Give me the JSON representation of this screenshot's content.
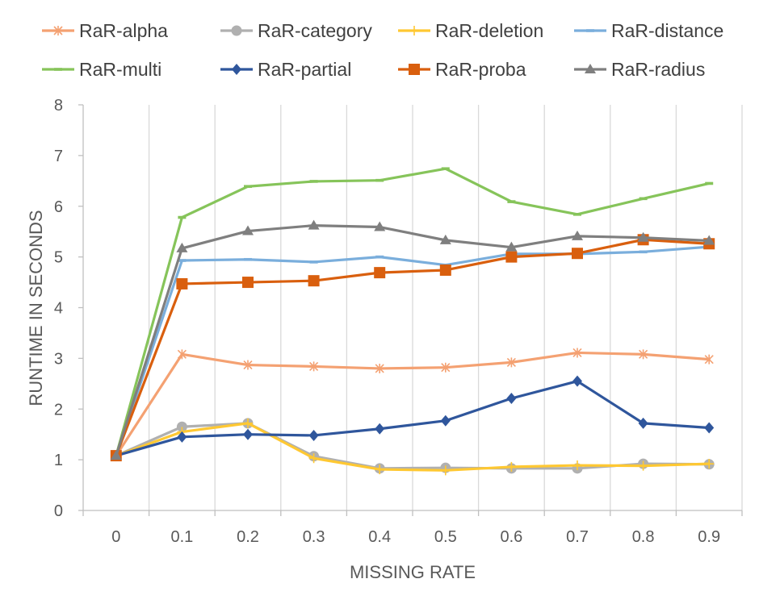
{
  "chart_data": {
    "type": "line",
    "title": "",
    "xlabel": "MISSING RATE",
    "ylabel": "RUNTIME IN SECONDS",
    "categories": [
      "0",
      "0.1",
      "0.2",
      "0.3",
      "0.4",
      "0.5",
      "0.6",
      "0.7",
      "0.8",
      "0.9"
    ],
    "yticks": [
      "0",
      "1",
      "2",
      "3",
      "4",
      "5",
      "6",
      "7",
      "8"
    ],
    "ylim": [
      0,
      8
    ],
    "grid": "vertical",
    "legend_position": "top",
    "series": [
      {
        "name": "RaR-alpha",
        "color": "#f4a172",
        "marker": "star",
        "values": [
          1.08,
          3.08,
          2.87,
          2.84,
          2.8,
          2.82,
          2.92,
          3.11,
          3.08,
          2.98
        ]
      },
      {
        "name": "RaR-category",
        "color": "#b0b0b0",
        "marker": "circle",
        "values": [
          1.08,
          1.65,
          1.72,
          1.07,
          0.83,
          0.84,
          0.83,
          0.83,
          0.92,
          0.91
        ]
      },
      {
        "name": "RaR-deletion",
        "color": "#ffc832",
        "marker": "plus",
        "values": [
          1.08,
          1.55,
          1.72,
          1.03,
          0.81,
          0.79,
          0.86,
          0.89,
          0.88,
          0.92
        ]
      },
      {
        "name": "RaR-distance",
        "color": "#7aaedc",
        "marker": "dash",
        "values": [
          1.08,
          4.93,
          4.95,
          4.9,
          5.0,
          4.84,
          5.06,
          5.06,
          5.1,
          5.2
        ]
      },
      {
        "name": "RaR-multi",
        "color": "#86c45a",
        "marker": "dash",
        "values": [
          1.08,
          5.78,
          6.39,
          6.49,
          6.51,
          6.74,
          6.09,
          5.84,
          6.15,
          6.45
        ]
      },
      {
        "name": "RaR-partial",
        "color": "#2f569c",
        "marker": "diamond",
        "values": [
          1.08,
          1.45,
          1.5,
          1.48,
          1.61,
          1.77,
          2.21,
          2.55,
          1.72,
          1.63
        ]
      },
      {
        "name": "RaR-proba",
        "color": "#d95f0e",
        "marker": "square",
        "values": [
          1.08,
          4.47,
          4.5,
          4.53,
          4.69,
          4.74,
          5.0,
          5.07,
          5.34,
          5.26
        ]
      },
      {
        "name": "RaR-radius",
        "color": "#7f7f7f",
        "marker": "triangle",
        "values": [
          1.08,
          5.17,
          5.51,
          5.62,
          5.59,
          5.33,
          5.19,
          5.41,
          5.38,
          5.32
        ]
      }
    ]
  }
}
